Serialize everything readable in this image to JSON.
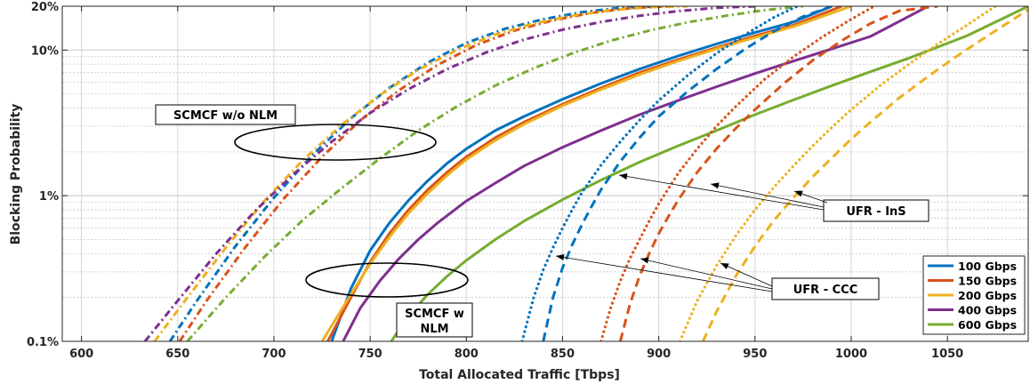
{
  "chart_data": {
    "type": "line",
    "xlabel": "Total Allocated Traffic [Tbps]",
    "ylabel": "Blocking Probability",
    "xlim": [
      590,
      1092
    ],
    "ylim": [
      0.1,
      20
    ],
    "yscale": "log",
    "grid": true,
    "legend_position": "bottom-right",
    "x_ticks": [
      600,
      650,
      700,
      750,
      800,
      850,
      900,
      950,
      1000,
      1050
    ],
    "x_tick_labels": [
      "600",
      "650",
      "700",
      "750",
      "800",
      "850",
      "900",
      "950",
      "1000",
      "1050"
    ],
    "y_ticks": [
      0.1,
      1,
      10,
      20
    ],
    "y_tick_labels": [
      "0.1%",
      "1%",
      "10%",
      "20%"
    ],
    "legend": [
      {
        "name": "100 Gbps",
        "color": "#0072BD"
      },
      {
        "name": "150 Gbps",
        "color": "#D95319"
      },
      {
        "name": "200 Gbps",
        "color": "#EDB120"
      },
      {
        "name": "400 Gbps",
        "color": "#7E2F8E"
      },
      {
        "name": "600 Gbps",
        "color": "#77AC30"
      }
    ],
    "annotations": [
      {
        "text": "SCMCF w/o NLM"
      },
      {
        "text": "SCMCF w NLM"
      },
      {
        "text": "UFR - InS"
      },
      {
        "text": "UFR - CCC"
      }
    ],
    "series": [
      {
        "group": "SCMCF w/o NLM",
        "rate": "100 Gbps",
        "color": "#0072BD",
        "dash": "8,4,2,4",
        "x": [
          646,
          660,
          680,
          700,
          720,
          740,
          760,
          780,
          800,
          820,
          840,
          860,
          880,
          900
        ],
        "y": [
          0.1,
          0.19,
          0.45,
          0.97,
          1.9,
          3.4,
          5.5,
          8.2,
          11.2,
          14.0,
          16.3,
          18.2,
          19.5,
          20
        ]
      },
      {
        "group": "SCMCF w/o NLM",
        "rate": "150 Gbps",
        "color": "#D95319",
        "dash": "8,4,2,4",
        "x": [
          651,
          665,
          685,
          705,
          725,
          745,
          765,
          785,
          805,
          825,
          845,
          865,
          885,
          905
        ],
        "y": [
          0.1,
          0.19,
          0.44,
          0.95,
          1.85,
          3.3,
          5.3,
          7.9,
          10.8,
          13.6,
          16.0,
          18.0,
          19.4,
          20
        ]
      },
      {
        "group": "SCMCF w/o NLM",
        "rate": "200 Gbps",
        "color": "#EDB120",
        "dash": "8,4,2,4",
        "x": [
          638,
          655,
          675,
          695,
          715,
          735,
          755,
          775,
          795,
          815,
          835,
          855,
          875,
          895,
          915
        ],
        "y": [
          0.1,
          0.2,
          0.44,
          0.92,
          1.75,
          3.05,
          4.9,
          7.3,
          10.0,
          12.8,
          15.2,
          17.2,
          18.8,
          19.7,
          20
        ]
      },
      {
        "group": "SCMCF w/o NLM",
        "rate": "400 Gbps",
        "color": "#7E2F8E",
        "dash": "8,4,2,4",
        "x": [
          633,
          650,
          670,
          690,
          710,
          730,
          750,
          770,
          790,
          810,
          830,
          850,
          870,
          890,
          910,
          930,
          950
        ],
        "y": [
          0.1,
          0.19,
          0.4,
          0.78,
          1.4,
          2.35,
          3.7,
          5.4,
          7.4,
          9.6,
          11.8,
          13.8,
          15.6,
          17.2,
          18.5,
          19.5,
          20
        ]
      },
      {
        "group": "SCMCF w/o NLM",
        "rate": "600 Gbps",
        "color": "#77AC30",
        "dash": "8,4,2,4",
        "x": [
          655,
          675,
          695,
          715,
          735,
          755,
          775,
          795,
          815,
          835,
          855,
          875,
          895,
          915,
          935,
          955,
          975
        ],
        "y": [
          0.1,
          0.2,
          0.38,
          0.68,
          1.12,
          1.8,
          2.8,
          4.1,
          5.7,
          7.5,
          9.5,
          11.6,
          13.6,
          15.5,
          17.2,
          18.8,
          20
        ]
      },
      {
        "group": "SCMCF w NLM",
        "rate": "100 Gbps",
        "color": "#0072BD",
        "dash": "",
        "x": [
          730,
          740,
          750,
          760,
          770,
          780,
          790,
          800,
          815,
          830,
          850,
          870,
          890,
          910,
          930,
          950,
          970,
          990
        ],
        "y": [
          0.1,
          0.23,
          0.42,
          0.65,
          0.93,
          1.27,
          1.67,
          2.1,
          2.8,
          3.5,
          4.6,
          5.9,
          7.4,
          9.1,
          11.0,
          13.2,
          15.6,
          20
        ]
      },
      {
        "group": "SCMCF w NLM",
        "rate": "150 Gbps",
        "color": "#D95319",
        "dash": "",
        "x": [
          728,
          740,
          750,
          760,
          770,
          780,
          790,
          800,
          815,
          830,
          850,
          870,
          890,
          910,
          930,
          950,
          970,
          995
        ],
        "y": [
          0.1,
          0.2,
          0.35,
          0.55,
          0.8,
          1.1,
          1.45,
          1.85,
          2.5,
          3.2,
          4.25,
          5.5,
          7.0,
          8.6,
          10.4,
          12.5,
          14.8,
          20
        ]
      },
      {
        "group": "SCMCF w NLM",
        "rate": "200 Gbps",
        "color": "#EDB120",
        "dash": "",
        "x": [
          725,
          740,
          750,
          760,
          770,
          780,
          790,
          800,
          815,
          830,
          850,
          870,
          890,
          910,
          930,
          950,
          970,
          1000
        ],
        "y": [
          0.1,
          0.21,
          0.34,
          0.52,
          0.76,
          1.04,
          1.38,
          1.77,
          2.4,
          3.1,
          4.15,
          5.35,
          6.8,
          8.4,
          10.2,
          12.2,
          14.5,
          20
        ]
      },
      {
        "group": "SCMCF w NLM",
        "rate": "400 Gbps",
        "color": "#7E2F8E",
        "dash": "",
        "x": [
          736,
          745,
          755,
          765,
          775,
          785,
          800,
          815,
          830,
          850,
          870,
          890,
          910,
          930,
          950,
          970,
          990,
          1010,
          1040
        ],
        "y": [
          0.1,
          0.17,
          0.26,
          0.37,
          0.5,
          0.65,
          0.92,
          1.22,
          1.6,
          2.15,
          2.8,
          3.6,
          4.5,
          5.6,
          6.9,
          8.4,
          10.2,
          12.4,
          20
        ]
      },
      {
        "group": "SCMCF w NLM",
        "rate": "600 Gbps",
        "color": "#77AC30",
        "dash": "",
        "x": [
          761,
          770,
          780,
          790,
          800,
          815,
          830,
          850,
          870,
          890,
          910,
          930,
          950,
          970,
          990,
          1010,
          1030,
          1060,
          1092
        ],
        "y": [
          0.1,
          0.15,
          0.21,
          0.28,
          0.36,
          0.5,
          0.67,
          0.94,
          1.28,
          1.7,
          2.2,
          2.8,
          3.6,
          4.55,
          5.7,
          7.1,
          8.8,
          12.5,
          20
        ]
      },
      {
        "group": "UFR - InS",
        "rate": "100 Gbps",
        "color": "#0072BD",
        "dash": "2,4",
        "x": [
          829,
          835,
          840,
          845,
          850,
          855,
          860,
          870,
          880,
          890,
          900,
          915,
          930,
          945,
          960,
          972
        ],
        "y": [
          0.1,
          0.2,
          0.31,
          0.44,
          0.6,
          0.8,
          1.05,
          1.62,
          2.35,
          3.3,
          4.5,
          6.7,
          9.5,
          12.8,
          16.8,
          20
        ]
      },
      {
        "group": "UFR - InS",
        "rate": "150 Gbps",
        "color": "#D95319",
        "dash": "2,4",
        "x": [
          870,
          875,
          880,
          885,
          890,
          895,
          900,
          910,
          920,
          930,
          940,
          955,
          970,
          985,
          1000,
          1012
        ],
        "y": [
          0.1,
          0.17,
          0.26,
          0.37,
          0.5,
          0.67,
          0.88,
          1.42,
          2.1,
          3.0,
          4.1,
          6.3,
          9.0,
          12.3,
          16.3,
          20
        ]
      },
      {
        "group": "UFR - InS",
        "rate": "200 Gbps",
        "color": "#EDB120",
        "dash": "2,4",
        "x": [
          911,
          920,
          930,
          940,
          950,
          960,
          970,
          980,
          990,
          1000,
          1015,
          1030,
          1045,
          1060,
          1075
        ],
        "y": [
          0.1,
          0.19,
          0.33,
          0.53,
          0.8,
          1.15,
          1.6,
          2.2,
          2.95,
          3.9,
          5.7,
          8.0,
          11.0,
          14.8,
          20
        ]
      },
      {
        "group": "UFR - CCC",
        "rate": "100 Gbps",
        "color": "#0072BD",
        "dash": "10,6",
        "x": [
          840,
          845,
          850,
          855,
          860,
          865,
          870,
          880,
          890,
          900,
          915,
          930,
          945,
          960,
          975,
          990
        ],
        "y": [
          0.1,
          0.2,
          0.32,
          0.46,
          0.63,
          0.84,
          1.1,
          1.72,
          2.5,
          3.5,
          5.2,
          7.4,
          10.2,
          13.5,
          17.0,
          20
        ]
      },
      {
        "group": "UFR - CCC",
        "rate": "150 Gbps",
        "color": "#D95319",
        "dash": "10,6",
        "x": [
          880,
          885,
          890,
          895,
          900,
          905,
          910,
          920,
          930,
          940,
          950,
          965,
          980,
          995,
          1010,
          1025,
          1045
        ],
        "y": [
          0.1,
          0.18,
          0.28,
          0.4,
          0.55,
          0.72,
          0.93,
          1.45,
          2.1,
          2.9,
          3.9,
          5.9,
          8.5,
          11.6,
          15.2,
          18.6,
          20
        ]
      },
      {
        "group": "UFR - CCC",
        "rate": "200 Gbps",
        "color": "#EDB120",
        "dash": "10,6",
        "x": [
          923,
          930,
          940,
          950,
          960,
          970,
          980,
          990,
          1000,
          1010,
          1025,
          1040,
          1055,
          1070,
          1085,
          1092
        ],
        "y": [
          0.1,
          0.16,
          0.28,
          0.45,
          0.68,
          0.97,
          1.35,
          1.82,
          2.45,
          3.2,
          4.7,
          6.6,
          9.1,
          12.3,
          16.5,
          19
        ]
      }
    ]
  }
}
